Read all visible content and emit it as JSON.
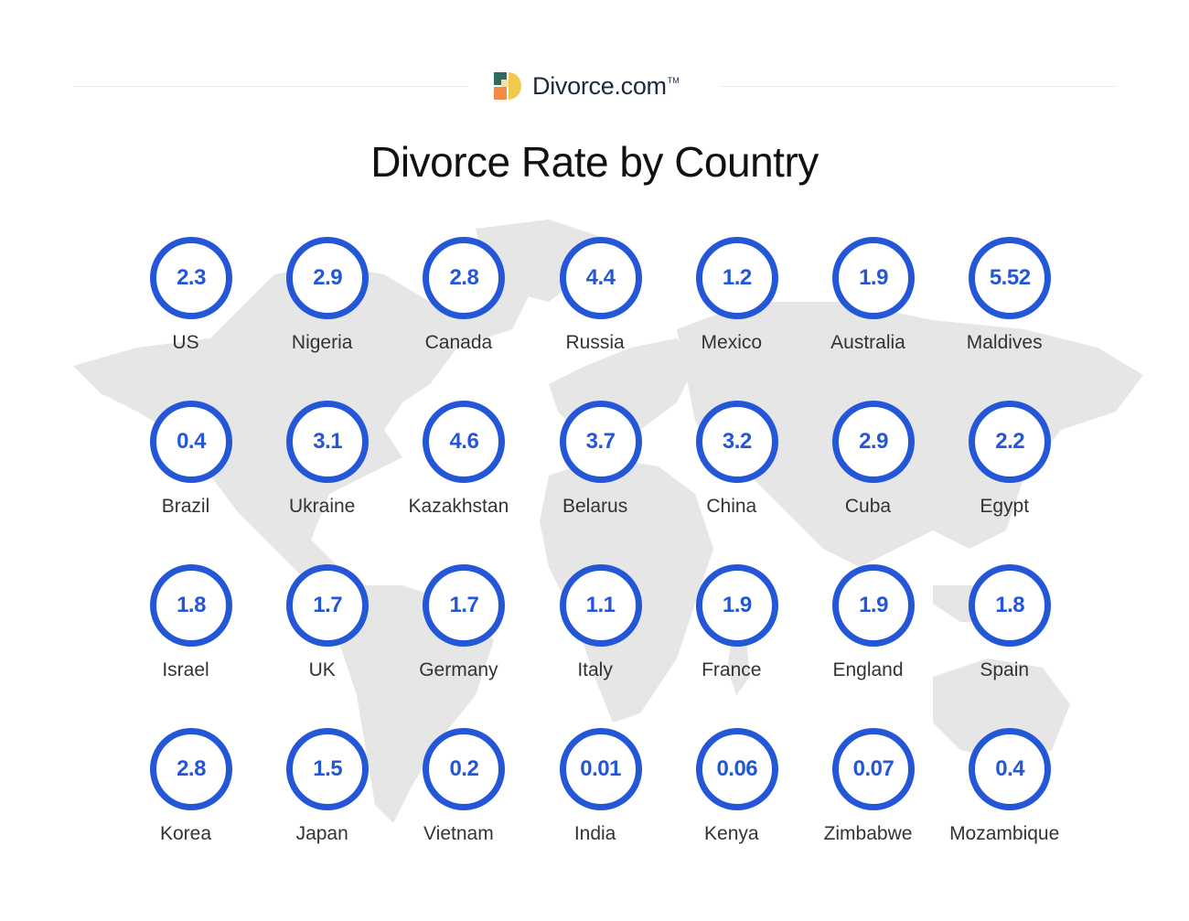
{
  "brand": {
    "name": "Divorce.com",
    "tm": "TM",
    "logo_colors": [
      "#2e6b5e",
      "#f2c94c",
      "#f28a4a",
      "#f6dfa0"
    ]
  },
  "title": "Divorce Rate by Country",
  "colors": {
    "accent": "#2456d8",
    "map": "#e6e6e6",
    "text": "#333333"
  },
  "chart_data": {
    "type": "table",
    "title": "Divorce Rate by Country",
    "categories": [
      "US",
      "Nigeria",
      "Canada",
      "Russia",
      "Mexico",
      "Australia",
      "Maldives",
      "Brazil",
      "Ukraine",
      "Kazakhstan",
      "Belarus",
      "China",
      "Cuba",
      "Egypt",
      "Israel",
      "UK",
      "Germany",
      "Italy",
      "France",
      "England",
      "Spain",
      "Korea",
      "Japan",
      "Vietnam",
      "India",
      "Kenya",
      "Zimbabwe",
      "Mozambique"
    ],
    "values": [
      "2.3",
      "2.9",
      "2.8",
      "4.4",
      "1.2",
      "1.9",
      "5.52",
      "0.4",
      "3.1",
      "4.6",
      "3.7",
      "3.2",
      "2.9",
      "2.2",
      "1.8",
      "1.7",
      "1.7",
      "1.1",
      "1.9",
      "1.9",
      "1.8",
      "2.8",
      "1.5",
      "0.2",
      "0.01",
      "0.06",
      "0.07",
      "0.4"
    ],
    "columns": 7
  }
}
